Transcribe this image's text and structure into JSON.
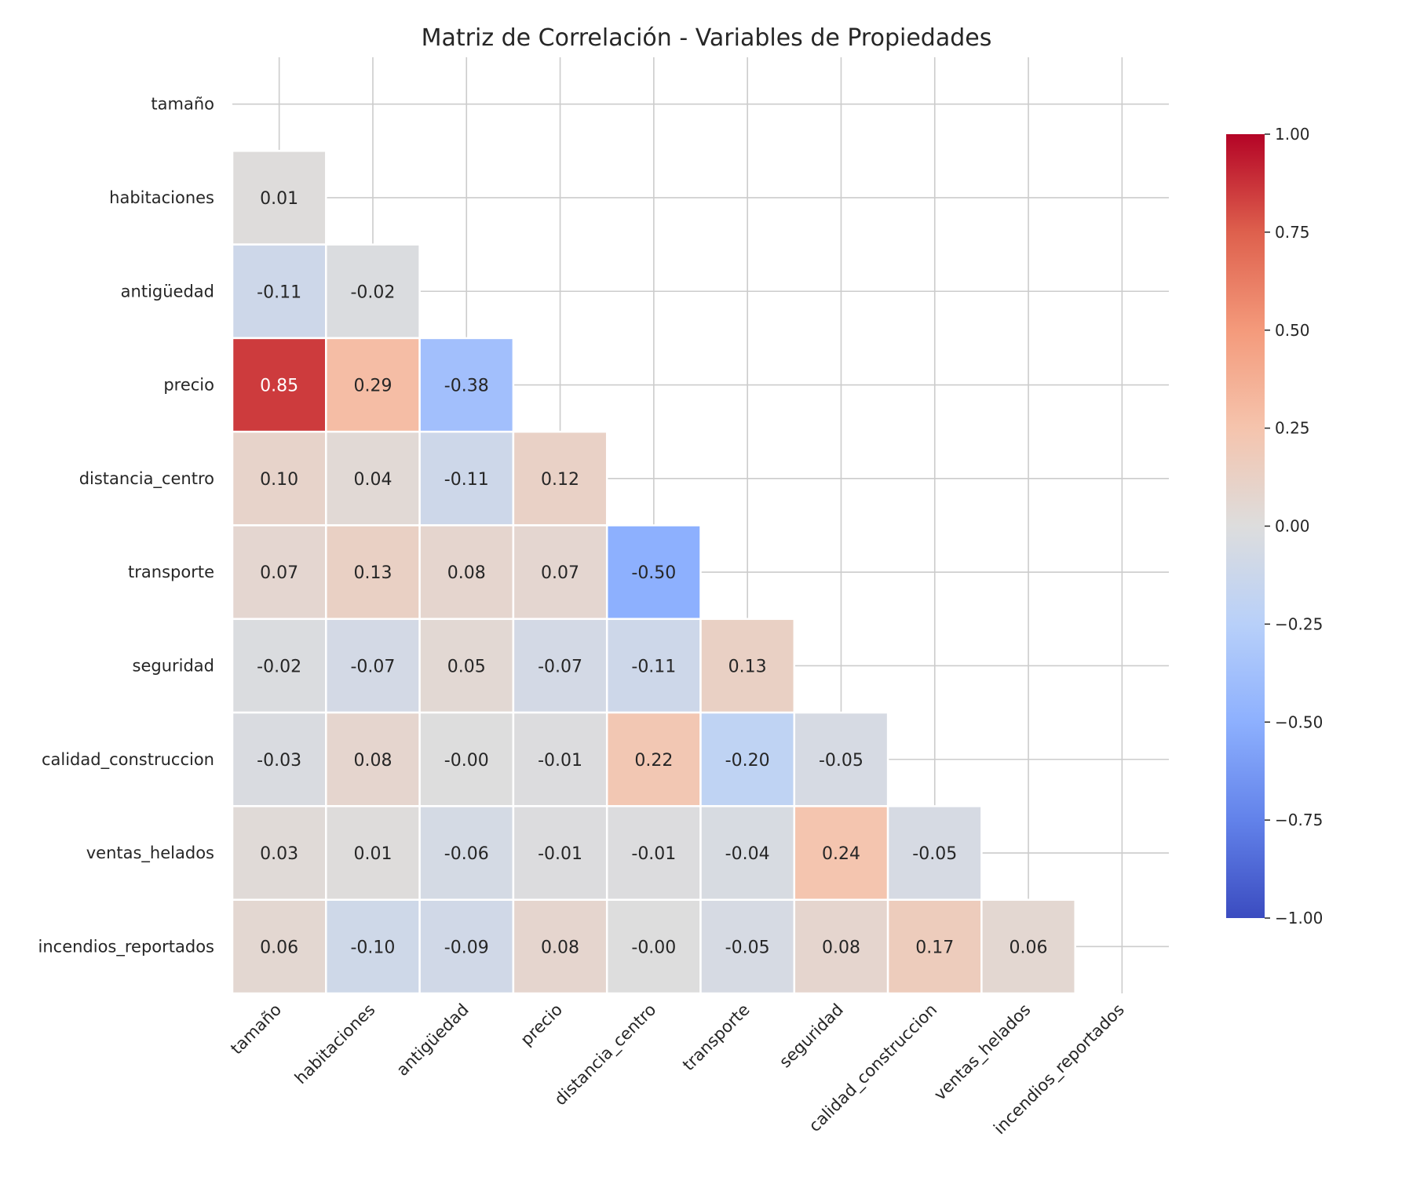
{
  "chart_data": {
    "type": "heatmap",
    "title": "Matriz de Correlación - Variables de Propiedades",
    "variables": [
      "tamaño",
      "habitaciones",
      "antigüedad",
      "precio",
      "distancia_centro",
      "transporte",
      "seguridad",
      "calidad_construccion",
      "ventas_helados",
      "incendios_reportados"
    ],
    "matrix": [
      [
        null,
        null,
        null,
        null,
        null,
        null,
        null,
        null,
        null,
        null
      ],
      [
        0.01,
        null,
        null,
        null,
        null,
        null,
        null,
        null,
        null,
        null
      ],
      [
        -0.11,
        -0.02,
        null,
        null,
        null,
        null,
        null,
        null,
        null,
        null
      ],
      [
        0.85,
        0.29,
        -0.38,
        null,
        null,
        null,
        null,
        null,
        null,
        null
      ],
      [
        0.1,
        0.04,
        -0.11,
        0.12,
        null,
        null,
        null,
        null,
        null,
        null
      ],
      [
        0.07,
        0.13,
        0.08,
        0.07,
        -0.5,
        null,
        null,
        null,
        null,
        null
      ],
      [
        -0.02,
        -0.07,
        0.05,
        -0.07,
        -0.11,
        0.13,
        null,
        null,
        null,
        null
      ],
      [
        -0.03,
        0.08,
        -0.0,
        -0.01,
        0.22,
        -0.2,
        -0.05,
        null,
        null,
        null
      ],
      [
        0.03,
        0.01,
        -0.06,
        -0.01,
        -0.01,
        -0.04,
        0.24,
        -0.05,
        null,
        null
      ],
      [
        0.06,
        -0.1,
        -0.09,
        0.08,
        -0.0,
        -0.05,
        0.08,
        0.17,
        0.06,
        null
      ]
    ],
    "annotation_format": "2 decimals",
    "mask": "upper triangle including diagonal",
    "colormap": "coolwarm",
    "vmin": -1.0,
    "vmax": 1.0,
    "colorbar_ticks": [
      "1.00",
      "0.75",
      "0.50",
      "0.25",
      "0.00",
      "−0.25",
      "−0.50",
      "−0.75",
      "−1.00"
    ],
    "colorbar_tick_values": [
      1.0,
      0.75,
      0.5,
      0.25,
      0.0,
      -0.25,
      -0.5,
      -0.75,
      -1.0
    ],
    "grid": true,
    "colors": {
      "text": "#262626",
      "grid": "#cccccc",
      "cell_border": "#ffffff"
    }
  }
}
